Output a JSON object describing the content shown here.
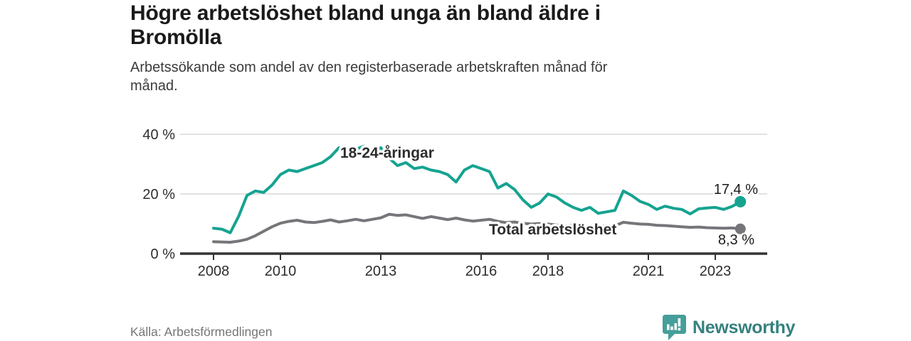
{
  "header": {
    "title": "Högre arbetslöshet bland unga än bland äldre i Bromölla",
    "subtitle": "Arbetssökande som andel av den registerbaserade arbetskraften månad för månad."
  },
  "footer": {
    "source": "Källa: Arbetsförmedlingen",
    "brand": "Newsworthy",
    "brand_icon": "newsworthy-bubble-bar-chart-icon"
  },
  "colors": {
    "young_series": "#15a390",
    "total_series": "#76767a",
    "axis": "#333333",
    "gridline": "#d8d8d8",
    "title_text": "#1a1a1a",
    "value_label_text": "#1b1b1b",
    "source_text": "#757575",
    "brand_teal": "#35817e",
    "logo_icon_teal": "#469e9a"
  },
  "chart_data": {
    "type": "line",
    "unit": "%",
    "grid": "horizontal",
    "xlim": [
      2007.0,
      2024.6
    ],
    "ylim": [
      0,
      42
    ],
    "x_ticks": [
      {
        "value": 2008,
        "label": "2008"
      },
      {
        "value": 2010,
        "label": "2010"
      },
      {
        "value": 2013,
        "label": "2013"
      },
      {
        "value": 2016,
        "label": "2016"
      },
      {
        "value": 2018,
        "label": "2018"
      },
      {
        "value": 2021,
        "label": "2021"
      },
      {
        "value": 2023,
        "label": "2023"
      }
    ],
    "y_ticks": [
      {
        "value": 0,
        "label": "0 %"
      },
      {
        "value": 20,
        "label": "20 %"
      },
      {
        "value": 40,
        "label": "40 %"
      }
    ],
    "x_start": 2008,
    "x_step_years": 0.25,
    "series": [
      {
        "name": "18-24-åringar",
        "color": "#15a390",
        "end_value": 17.4,
        "end_label": "17,4 %",
        "values": [
          8.5,
          8.2,
          7.0,
          12.5,
          19.5,
          21.0,
          20.5,
          23.0,
          26.5,
          28.0,
          27.5,
          28.5,
          29.5,
          30.5,
          32.5,
          35.5,
          34.0,
          35.0,
          36.0,
          34.0,
          35.5,
          32.0,
          29.5,
          30.5,
          28.5,
          29.0,
          28.0,
          27.5,
          26.5,
          24.0,
          28.0,
          29.5,
          28.5,
          27.5,
          22.0,
          23.5,
          21.5,
          18.0,
          15.5,
          17.0,
          20.0,
          19.0,
          17.0,
          15.5,
          14.5,
          15.5,
          13.5,
          14.0,
          14.5,
          21.0,
          19.5,
          17.5,
          16.5,
          14.8,
          15.9,
          15.2,
          14.8,
          13.3,
          15.0,
          15.3,
          15.5,
          14.8,
          15.8,
          17.4
        ]
      },
      {
        "name": "Total arbetslöshet",
        "color": "#76767a",
        "end_value": 8.3,
        "end_label": "8,3 %",
        "values": [
          4.0,
          3.9,
          3.8,
          4.2,
          4.8,
          6.0,
          7.5,
          9.0,
          10.2,
          10.8,
          11.2,
          10.6,
          10.4,
          10.8,
          11.3,
          10.6,
          11.0,
          11.5,
          11.0,
          11.5,
          12.0,
          13.2,
          12.8,
          13.0,
          12.4,
          11.8,
          12.4,
          11.9,
          11.4,
          11.9,
          11.3,
          10.9,
          11.2,
          11.5,
          10.8,
          10.4,
          10.6,
          10.2,
          9.9,
          10.1,
          9.9,
          9.6,
          9.4,
          9.6,
          9.4,
          9.1,
          9.3,
          9.1,
          9.3,
          10.5,
          10.2,
          9.9,
          9.8,
          9.5,
          9.4,
          9.2,
          9.0,
          8.8,
          8.9,
          8.7,
          8.6,
          8.5,
          8.6,
          8.3
        ]
      }
    ]
  }
}
